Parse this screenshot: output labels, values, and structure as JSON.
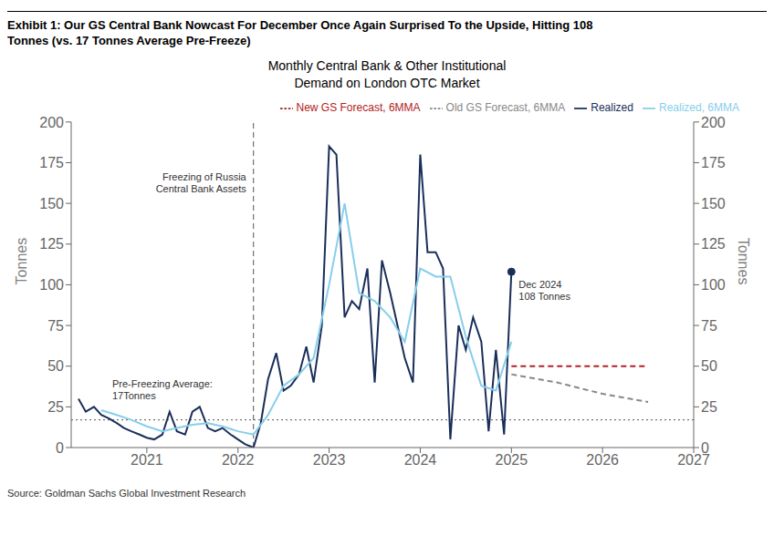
{
  "chart_data": {
    "type": "line",
    "title": "Exhibit 1: Our GS Central Bank Nowcast For December Once Again Surprised To the Upside, Hitting 108\nTonnes (vs. 17 Tonnes Average Pre-Freeze)",
    "subtitle": "Monthly Central Bank & Other Institutional\nDemand on London OTC Market",
    "y_label": "Tonnes",
    "y2_label": "Tonnes",
    "source": "Source: Goldman Sachs Global Investment Research",
    "xlim": [
      2020.17,
      2027.0
    ],
    "xticks": [
      2021,
      2022,
      2023,
      2024,
      2025,
      2026,
      2027
    ],
    "ylim": [
      0,
      200
    ],
    "yticks": [
      0,
      25,
      50,
      75,
      100,
      125,
      150,
      175,
      200
    ],
    "y2lim": [
      0,
      200
    ],
    "y2ticks": [
      0,
      25,
      50,
      75,
      100,
      125,
      150,
      175,
      200
    ],
    "grid": false,
    "legend": "upper right",
    "series": [
      {
        "name": "Realized",
        "color": "#1a2e5a",
        "line_style": "solid",
        "x": [
          2020.25,
          2020.33,
          2020.42,
          2020.5,
          2020.58,
          2020.67,
          2020.75,
          2020.83,
          2020.92,
          2021.0,
          2021.08,
          2021.17,
          2021.25,
          2021.33,
          2021.42,
          2021.5,
          2021.58,
          2021.67,
          2021.75,
          2021.83,
          2021.92,
          2022.0,
          2022.08,
          2022.17,
          2022.25,
          2022.33,
          2022.42,
          2022.5,
          2022.58,
          2022.67,
          2022.75,
          2022.83,
          2022.92,
          2023.0,
          2023.08,
          2023.17,
          2023.25,
          2023.33,
          2023.42,
          2023.5,
          2023.58,
          2023.67,
          2023.75,
          2023.83,
          2023.92,
          2024.0,
          2024.08,
          2024.17,
          2024.25,
          2024.33,
          2024.42,
          2024.5,
          2024.58,
          2024.67,
          2024.75,
          2024.83,
          2024.92,
          2025.0
        ],
        "values": [
          30,
          22,
          25,
          20,
          18,
          15,
          12,
          10,
          8,
          6,
          5,
          8,
          22,
          10,
          8,
          22,
          25,
          12,
          10,
          12,
          8,
          5,
          2,
          0,
          15,
          42,
          58,
          35,
          38,
          45,
          62,
          40,
          75,
          185,
          180,
          80,
          90,
          85,
          110,
          40,
          115,
          95,
          75,
          55,
          40,
          180,
          120,
          120,
          110,
          5,
          75,
          60,
          80,
          65,
          10,
          60,
          8,
          108
        ]
      },
      {
        "name": "Realized, 6MMA",
        "color": "#87ceeb",
        "line_style": "solid",
        "x": [
          2020.5,
          2020.67,
          2020.83,
          2021.0,
          2021.17,
          2021.33,
          2021.5,
          2021.67,
          2021.83,
          2022.0,
          2022.17,
          2022.33,
          2022.5,
          2022.67,
          2022.83,
          2023.0,
          2023.17,
          2023.33,
          2023.5,
          2023.67,
          2023.83,
          2024.0,
          2024.17,
          2024.33,
          2024.5,
          2024.67,
          2024.83,
          2025.0
        ],
        "values": [
          23,
          20,
          17,
          13,
          10,
          12,
          14,
          15,
          13,
          10,
          8,
          20,
          38,
          45,
          55,
          100,
          150,
          95,
          90,
          80,
          65,
          110,
          105,
          105,
          68,
          38,
          35,
          65
        ]
      },
      {
        "name": "Old GS Forecast, 6MMA",
        "color": "#888888",
        "line_style": "dashed",
        "x": [
          2025.0,
          2025.5,
          2026.0,
          2026.5
        ],
        "values": [
          45,
          40,
          33,
          28
        ]
      },
      {
        "name": "New GS Forecast, 6MMA",
        "color": "#b22222",
        "line_style": "dashed",
        "x": [
          2025.0,
          2025.5,
          2026.0,
          2026.5
        ],
        "values": [
          50,
          50,
          50,
          50
        ]
      }
    ],
    "reference_lines": [
      {
        "axis": "x",
        "value": 2022.17,
        "line_style": "dashed",
        "label": "Freezing of Russia\nCentral Bank Assets"
      },
      {
        "axis": "y",
        "value": 17,
        "line_style": "dotted",
        "label": "Pre-Freezing Average:\n17Tonnes"
      }
    ],
    "points": [
      {
        "x": 2025.0,
        "y": 108,
        "color": "#1a2e5a",
        "label": "Dec 2024\n108 Tonnes"
      }
    ]
  }
}
